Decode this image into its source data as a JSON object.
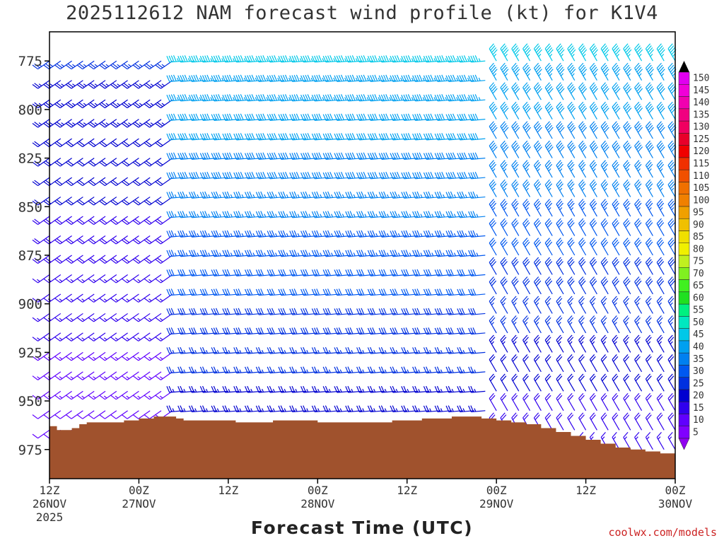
{
  "chart_data": {
    "type": "wind-barb-profile",
    "title": "2025112612 NAM forecast wind profile (kt) for K1V4",
    "xlabel": "Forecast Time (UTC)",
    "ylabel": "",
    "credit": "coolwx.com/models",
    "x_hours_range": [
      0,
      84
    ],
    "y_pressure_range_mb": [
      760,
      990
    ],
    "y_ticks": [
      775,
      800,
      825,
      850,
      875,
      900,
      925,
      950,
      975
    ],
    "x_ticks": [
      {
        "hour": 0,
        "l1": "12Z",
        "l2": "26NOV",
        "l3": "2025"
      },
      {
        "hour": 12,
        "l1": "00Z",
        "l2": "27NOV",
        "l3": ""
      },
      {
        "hour": 24,
        "l1": "12Z",
        "l2": "",
        "l3": ""
      },
      {
        "hour": 36,
        "l1": "00Z",
        "l2": "28NOV",
        "l3": ""
      },
      {
        "hour": 48,
        "l1": "12Z",
        "l2": "",
        "l3": ""
      },
      {
        "hour": 60,
        "l1": "00Z",
        "l2": "29NOV",
        "l3": ""
      },
      {
        "hour": 72,
        "l1": "12Z",
        "l2": "",
        "l3": ""
      },
      {
        "hour": 84,
        "l1": "00Z",
        "l2": "30NOV",
        "l3": ""
      }
    ],
    "colorbar": {
      "levels": [
        5,
        10,
        15,
        20,
        25,
        30,
        35,
        40,
        45,
        50,
        55,
        60,
        65,
        70,
        75,
        80,
        85,
        90,
        95,
        100,
        105,
        110,
        115,
        120,
        125,
        130,
        135,
        140,
        145,
        150
      ],
      "labels": [
        "5",
        "10",
        "15",
        "20",
        "25",
        "30",
        "35",
        "40",
        "45",
        "50",
        "55",
        "60",
        "65",
        "70",
        "75",
        "80",
        "85",
        "90",
        "95",
        "100",
        "105",
        "110",
        "115",
        "120",
        "125",
        "130",
        "135",
        "140",
        "145",
        "150"
      ],
      "colors": [
        "#8000ff",
        "#6000ff",
        "#3000ee",
        "#0000d0",
        "#0030e0",
        "#0058f0",
        "#0080f0",
        "#00a0f0",
        "#00c8e8",
        "#00e8c0",
        "#00f080",
        "#20e020",
        "#40f020",
        "#80f020",
        "#c0f020",
        "#f0f000",
        "#f0e000",
        "#f0c000",
        "#f0a000",
        "#f08000",
        "#f07000",
        "#f05000",
        "#f03000",
        "#f00000",
        "#e8002a",
        "#f00060",
        "#f00080",
        "#f000b0",
        "#f000d8",
        "#e000f0"
      ],
      "top_color": "#000000",
      "bottom_color": "#9000f0"
    },
    "terrain_color": "#a0522d",
    "terrain_surface_mb": [
      [
        0,
        963
      ],
      [
        1,
        965
      ],
      [
        2,
        965
      ],
      [
        3,
        964
      ],
      [
        4,
        962
      ],
      [
        5,
        961
      ],
      [
        6,
        961
      ],
      [
        7,
        961
      ],
      [
        8,
        961
      ],
      [
        9,
        961
      ],
      [
        10,
        960
      ],
      [
        12,
        959
      ],
      [
        14,
        958
      ],
      [
        16,
        958
      ],
      [
        17,
        959
      ],
      [
        18,
        960
      ],
      [
        22,
        960
      ],
      [
        25,
        961
      ],
      [
        30,
        960
      ],
      [
        36,
        961
      ],
      [
        42,
        961
      ],
      [
        46,
        960
      ],
      [
        50,
        959
      ],
      [
        52,
        959
      ],
      [
        54,
        958
      ],
      [
        56,
        958
      ],
      [
        58,
        959
      ],
      [
        60,
        960
      ],
      [
        62,
        961
      ],
      [
        64,
        962
      ],
      [
        66,
        964
      ],
      [
        68,
        966
      ],
      [
        70,
        968
      ],
      [
        72,
        970
      ],
      [
        74,
        972
      ],
      [
        76,
        974
      ],
      [
        78,
        975
      ],
      [
        80,
        976
      ],
      [
        82,
        977
      ],
      [
        84,
        979
      ]
    ],
    "wind_regimes": [
      {
        "from_hour": 0,
        "to_hour": 17,
        "direction_deg": 235,
        "speed_lo_kt": 10,
        "speed_hi_kt": 25
      },
      {
        "from_hour": 17,
        "to_hour": 60,
        "direction_deg": 265,
        "speed_lo_kt": 20,
        "speed_hi_kt": 45
      },
      {
        "from_hour": 60,
        "to_hour": 84,
        "direction_deg": 330,
        "speed_lo_kt": 15,
        "speed_hi_kt": 45
      }
    ]
  }
}
